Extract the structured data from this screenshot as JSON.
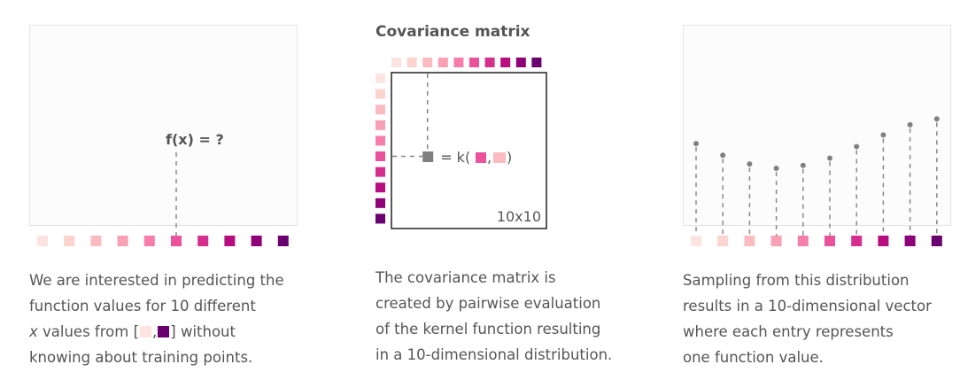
{
  "palette": [
    "#fde4e1",
    "#fcd3cf",
    "#fbbcc1",
    "#f9a0b4",
    "#f77eaa",
    "#ec519b",
    "#d62e8e",
    "#b80d7f",
    "#8e0178",
    "#6a006f"
  ],
  "panel1": {
    "label": "f(x) = ?",
    "highlight_index": 5,
    "caption": {
      "line1": "We are interested in predicting the",
      "line2": "function values for 10 different",
      "line3_x": "x",
      "line3_a": " values from [",
      "line3_b": "] without",
      "line4": "knowing about training points."
    }
  },
  "panel2": {
    "title": "Covariance matrix",
    "kernel_prefix": "= k(",
    "kernel_sep": ",",
    "kernel_suffix": ")",
    "kernel_args": [
      5,
      2
    ],
    "size_label": "10x10",
    "caption": {
      "line1": "The covariance matrix is",
      "line2": "created by pairwise evaluation",
      "line3": "of the kernel function resulting",
      "line4": "in a 10-dimensional distribution."
    }
  },
  "panel3": {
    "sample_values": [
      0.56,
      0.48,
      0.42,
      0.39,
      0.41,
      0.46,
      0.54,
      0.62,
      0.69,
      0.73
    ],
    "caption": {
      "line1": "Sampling from this distribution",
      "line2": "results in a 10-dimensional vector",
      "line3": "where each entry represents",
      "line4": "one function value."
    }
  }
}
